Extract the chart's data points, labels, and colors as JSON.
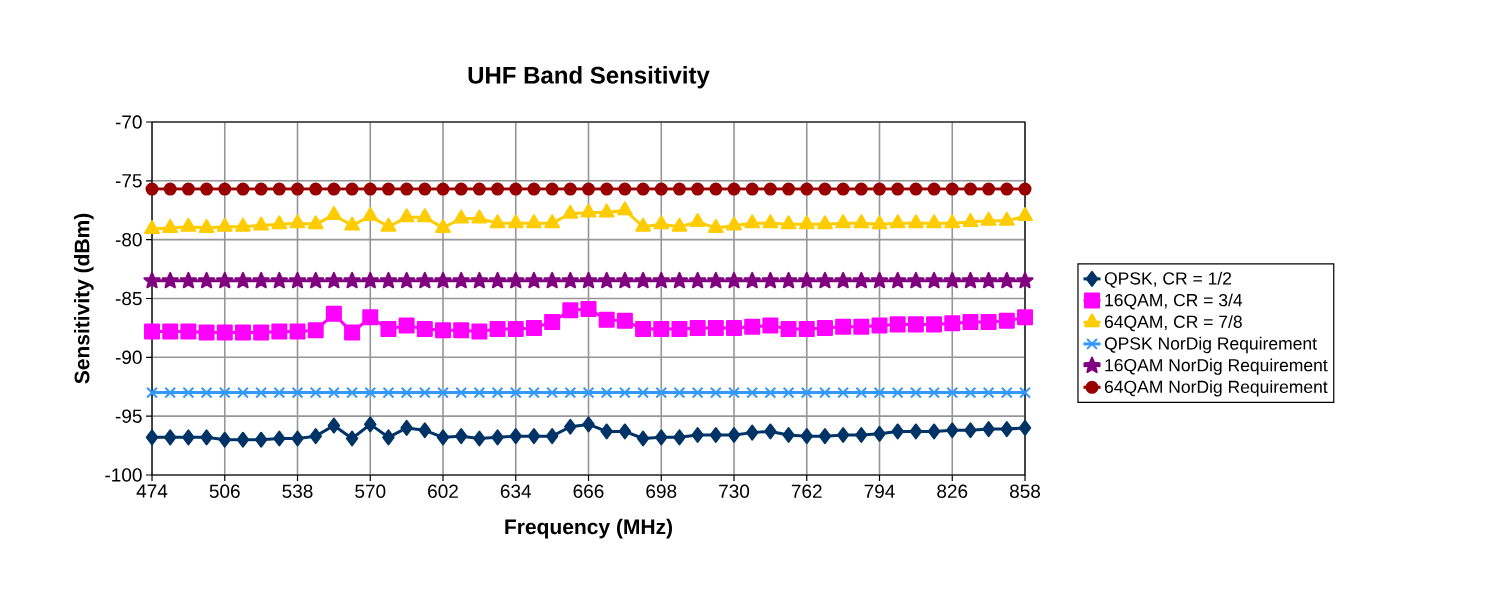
{
  "chart_data": {
    "type": "line",
    "title": "UHF Band Sensitivity",
    "xlabel": "Frequency (MHz)",
    "ylabel": "Sensitivity (dBm)",
    "x": [
      474,
      482,
      490,
      498,
      506,
      514,
      522,
      530,
      538,
      546,
      554,
      562,
      570,
      578,
      586,
      594,
      602,
      610,
      618,
      626,
      634,
      642,
      650,
      658,
      666,
      674,
      682,
      690,
      698,
      706,
      714,
      722,
      730,
      738,
      746,
      754,
      762,
      770,
      778,
      786,
      794,
      802,
      810,
      818,
      826,
      834,
      842,
      850,
      858
    ],
    "xlim": [
      474,
      858
    ],
    "xticks": [
      474,
      506,
      538,
      570,
      602,
      634,
      666,
      698,
      730,
      762,
      794,
      826,
      858
    ],
    "ylim": [
      -100,
      -70
    ],
    "yticks": [
      -100,
      -95,
      -90,
      -85,
      -80,
      -75,
      -70
    ],
    "grid": true,
    "legend": "right",
    "line_style": "solid",
    "series": [
      {
        "name": "QPSK, CR = 1/2",
        "color": "#003366",
        "marker": "diamond",
        "values": [
          -96.8,
          -96.8,
          -96.8,
          -96.8,
          -97.0,
          -97.0,
          -97.0,
          -96.9,
          -96.9,
          -96.7,
          -95.8,
          -96.9,
          -95.7,
          -96.8,
          -96.0,
          -96.2,
          -96.8,
          -96.7,
          -96.9,
          -96.8,
          -96.7,
          -96.7,
          -96.7,
          -95.9,
          -95.7,
          -96.3,
          -96.3,
          -96.9,
          -96.8,
          -96.8,
          -96.6,
          -96.6,
          -96.6,
          -96.4,
          -96.3,
          -96.6,
          -96.7,
          -96.7,
          -96.6,
          -96.6,
          -96.5,
          -96.3,
          -96.3,
          -96.3,
          -96.2,
          -96.2,
          -96.1,
          -96.1,
          -96.0
        ]
      },
      {
        "name": "16QAM, CR = 3/4",
        "color": "#ff00ff",
        "marker": "square",
        "values": [
          -87.8,
          -87.8,
          -87.8,
          -87.9,
          -87.9,
          -87.9,
          -87.9,
          -87.8,
          -87.8,
          -87.7,
          -86.3,
          -87.9,
          -86.6,
          -87.6,
          -87.3,
          -87.6,
          -87.7,
          -87.7,
          -87.8,
          -87.6,
          -87.6,
          -87.5,
          -87.0,
          -86.0,
          -85.9,
          -86.8,
          -86.9,
          -87.6,
          -87.6,
          -87.6,
          -87.5,
          -87.5,
          -87.5,
          -87.4,
          -87.3,
          -87.6,
          -87.6,
          -87.5,
          -87.4,
          -87.4,
          -87.3,
          -87.2,
          -87.2,
          -87.2,
          -87.1,
          -87.0,
          -87.0,
          -86.9,
          -86.6
        ]
      },
      {
        "name": "64QAM, CR = 7/8",
        "color": "#ffcc00",
        "marker": "triangle",
        "values": [
          -79.1,
          -79.0,
          -78.9,
          -79.0,
          -78.9,
          -78.9,
          -78.8,
          -78.7,
          -78.6,
          -78.7,
          -77.9,
          -78.8,
          -78.0,
          -78.9,
          -78.1,
          -78.1,
          -79.0,
          -78.2,
          -78.2,
          -78.6,
          -78.6,
          -78.6,
          -78.6,
          -77.8,
          -77.7,
          -77.7,
          -77.5,
          -78.9,
          -78.7,
          -78.9,
          -78.5,
          -79.0,
          -78.8,
          -78.6,
          -78.6,
          -78.7,
          -78.7,
          -78.7,
          -78.6,
          -78.6,
          -78.7,
          -78.6,
          -78.6,
          -78.6,
          -78.6,
          -78.5,
          -78.4,
          -78.4,
          -78.0
        ]
      },
      {
        "name": "QPSK NorDig Requirement",
        "color": "#3399ff",
        "marker": "cross",
        "values": [
          -93,
          -93,
          -93,
          -93,
          -93,
          -93,
          -93,
          -93,
          -93,
          -93,
          -93,
          -93,
          -93,
          -93,
          -93,
          -93,
          -93,
          -93,
          -93,
          -93,
          -93,
          -93,
          -93,
          -93,
          -93,
          -93,
          -93,
          -93,
          -93,
          -93,
          -93,
          -93,
          -93,
          -93,
          -93,
          -93,
          -93,
          -93,
          -93,
          -93,
          -93,
          -93,
          -93,
          -93,
          -93,
          -93,
          -93,
          -93,
          -93
        ]
      },
      {
        "name": "16QAM NorDig Requirement",
        "color": "#800080",
        "marker": "star",
        "values": [
          -83.5,
          -83.5,
          -83.5,
          -83.5,
          -83.5,
          -83.5,
          -83.5,
          -83.5,
          -83.5,
          -83.5,
          -83.5,
          -83.5,
          -83.5,
          -83.5,
          -83.5,
          -83.5,
          -83.5,
          -83.5,
          -83.5,
          -83.5,
          -83.5,
          -83.5,
          -83.5,
          -83.5,
          -83.5,
          -83.5,
          -83.5,
          -83.5,
          -83.5,
          -83.5,
          -83.5,
          -83.5,
          -83.5,
          -83.5,
          -83.5,
          -83.5,
          -83.5,
          -83.5,
          -83.5,
          -83.5,
          -83.5,
          -83.5,
          -83.5,
          -83.5,
          -83.5,
          -83.5,
          -83.5,
          -83.5,
          -83.5
        ]
      },
      {
        "name": "64QAM NorDig Requirement",
        "color": "#990000",
        "marker": "circle",
        "values": [
          -75.7,
          -75.7,
          -75.7,
          -75.7,
          -75.7,
          -75.7,
          -75.7,
          -75.7,
          -75.7,
          -75.7,
          -75.7,
          -75.7,
          -75.7,
          -75.7,
          -75.7,
          -75.7,
          -75.7,
          -75.7,
          -75.7,
          -75.7,
          -75.7,
          -75.7,
          -75.7,
          -75.7,
          -75.7,
          -75.7,
          -75.7,
          -75.7,
          -75.7,
          -75.7,
          -75.7,
          -75.7,
          -75.7,
          -75.7,
          -75.7,
          -75.7,
          -75.7,
          -75.7,
          -75.7,
          -75.7,
          -75.7,
          -75.7,
          -75.7,
          -75.7,
          -75.7,
          -75.7,
          -75.7,
          -75.7,
          -75.7
        ]
      }
    ]
  }
}
